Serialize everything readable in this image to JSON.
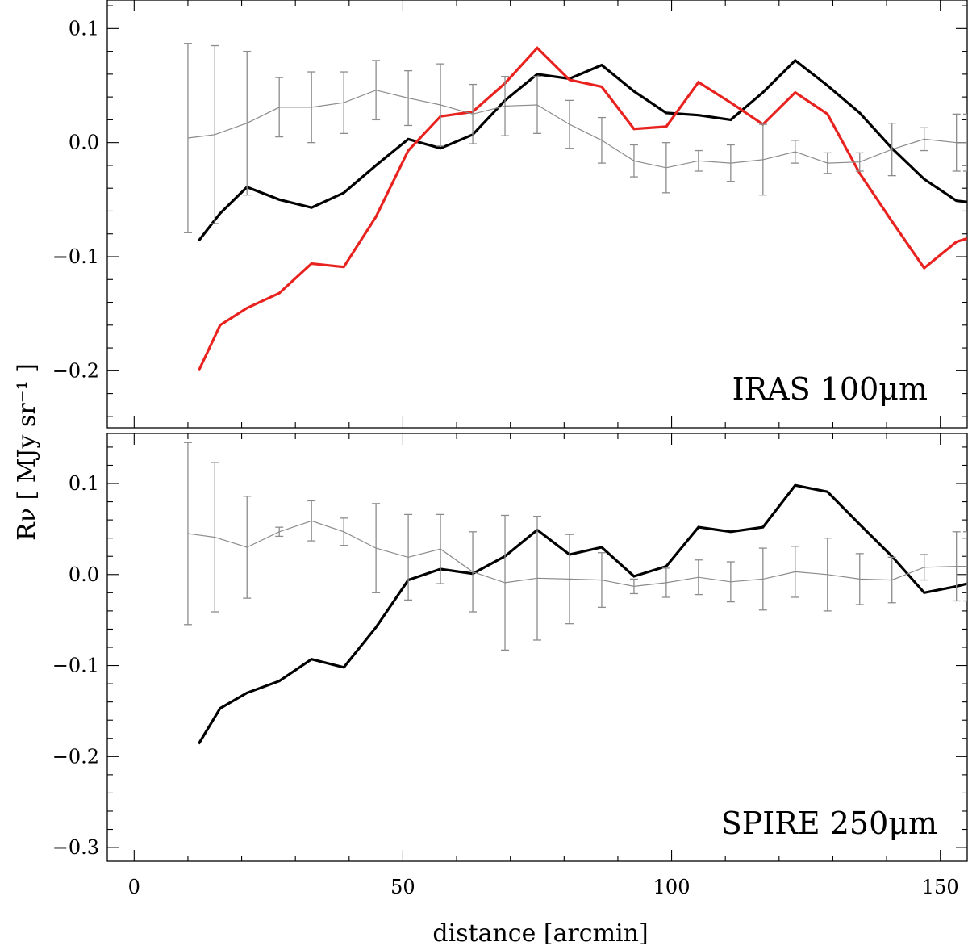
{
  "chart_data": [
    {
      "type": "line",
      "panel": "top",
      "panel_label": "IRAS 100μm",
      "xlabel": "distance [arcmin]",
      "ylabel": "Rν [ MJy sr⁻¹ ]",
      "xlim": [
        -5,
        155
      ],
      "ylim": [
        -0.25,
        0.125
      ],
      "yticks": [
        -0.2,
        -0.1,
        0.0,
        0.1
      ],
      "ytick_labels": [
        "−0.2",
        "−0.1",
        "0.0",
        "0.1"
      ],
      "series": [
        {
          "name": "black",
          "color": "#000000",
          "x": [
            12,
            16,
            21,
            27,
            33,
            39,
            45,
            51,
            57,
            63,
            69,
            75,
            81,
            87,
            93,
            99,
            105,
            111,
            117,
            123,
            129,
            135,
            141,
            147,
            153,
            155
          ],
          "y": [
            -0.086,
            -0.062,
            -0.039,
            -0.05,
            -0.057,
            -0.044,
            -0.02,
            0.003,
            -0.005,
            0.007,
            0.037,
            0.06,
            0.056,
            0.068,
            0.045,
            0.026,
            0.024,
            0.02,
            0.044,
            0.072,
            0.05,
            0.026,
            -0.005,
            -0.032,
            -0.051,
            -0.052
          ]
        },
        {
          "name": "red",
          "color": "#e8231f",
          "x": [
            12,
            16,
            21,
            27,
            33,
            39,
            45,
            51,
            57,
            63,
            69,
            75,
            81,
            87,
            93,
            99,
            105,
            111,
            117,
            123,
            129,
            135,
            141,
            147,
            153,
            155
          ],
          "y": [
            -0.2,
            -0.16,
            -0.145,
            -0.132,
            -0.106,
            -0.109,
            -0.065,
            -0.007,
            0.023,
            0.027,
            0.052,
            0.083,
            0.055,
            0.049,
            0.012,
            0.014,
            0.053,
            0.035,
            0.016,
            0.044,
            0.025,
            -0.027,
            -0.069,
            -0.11,
            -0.087,
            -0.084
          ]
        },
        {
          "name": "grey",
          "color": "#8c8c8c",
          "x": [
            10,
            15,
            21,
            27,
            33,
            39,
            45,
            51,
            57,
            63,
            69,
            75,
            81,
            87,
            93,
            99,
            105,
            111,
            117,
            123,
            129,
            135,
            141,
            147,
            153,
            155
          ],
          "y": [
            0.004,
            0.007,
            0.017,
            0.031,
            0.031,
            0.035,
            0.046,
            0.039,
            0.033,
            0.025,
            0.032,
            0.033,
            0.016,
            0.002,
            -0.016,
            -0.022,
            -0.016,
            -0.018,
            -0.015,
            -0.008,
            -0.018,
            -0.017,
            -0.006,
            0.003,
            0.0,
            0.0
          ],
          "err": [
            0.083,
            0.078,
            0.063,
            0.026,
            0.031,
            0.027,
            0.026,
            0.024,
            0.036,
            0.026,
            0.026,
            0.025,
            0.021,
            0.02,
            0.014,
            0.022,
            0.009,
            0.016,
            0.031,
            0.01,
            0.009,
            0.008,
            0.023,
            0.01,
            0.025,
            0.025
          ]
        }
      ]
    },
    {
      "type": "line",
      "panel": "bottom",
      "panel_label": "SPIRE 250μm",
      "xlabel": "distance [arcmin]",
      "ylabel": "Rν [ MJy sr⁻¹ ]",
      "xlim": [
        -5,
        155
      ],
      "ylim": [
        -0.315,
        0.155
      ],
      "xticks": [
        0,
        50,
        100,
        150
      ],
      "xtick_labels": [
        "0",
        "50",
        "100",
        "150"
      ],
      "yticks": [
        -0.3,
        -0.2,
        -0.1,
        0.0,
        0.1
      ],
      "ytick_labels": [
        "−0.3",
        "−0.2",
        "−0.1",
        "0.0",
        "0.1"
      ],
      "series": [
        {
          "name": "black",
          "color": "#000000",
          "x": [
            12,
            16,
            21,
            27,
            33,
            39,
            45,
            51,
            57,
            63,
            69,
            75,
            81,
            87,
            93,
            99,
            105,
            111,
            117,
            123,
            129,
            135,
            141,
            147,
            153,
            155
          ],
          "y": [
            -0.186,
            -0.147,
            -0.13,
            -0.117,
            -0.093,
            -0.102,
            -0.058,
            -0.006,
            0.006,
            0.001,
            0.02,
            0.049,
            0.022,
            0.03,
            -0.002,
            0.009,
            0.052,
            0.047,
            0.052,
            0.098,
            0.091,
            0.055,
            0.02,
            -0.02,
            -0.013,
            -0.01
          ]
        },
        {
          "name": "grey",
          "color": "#8c8c8c",
          "x": [
            10,
            15,
            21,
            27,
            33,
            39,
            45,
            51,
            57,
            63,
            69,
            75,
            81,
            87,
            93,
            99,
            105,
            111,
            117,
            123,
            129,
            135,
            141,
            147,
            153,
            155
          ],
          "y": [
            0.045,
            0.041,
            0.03,
            0.047,
            0.059,
            0.047,
            0.029,
            0.019,
            0.028,
            0.003,
            -0.009,
            -0.004,
            -0.005,
            -0.006,
            -0.013,
            -0.009,
            -0.003,
            -0.008,
            -0.005,
            0.003,
            0.0,
            -0.005,
            -0.006,
            0.008,
            0.009,
            0.009
          ],
          "err": [
            0.1,
            0.082,
            0.056,
            0.005,
            0.022,
            0.015,
            0.049,
            0.047,
            0.038,
            0.044,
            0.074,
            0.068,
            0.049,
            0.03,
            0.008,
            0.016,
            0.019,
            0.022,
            0.034,
            0.028,
            0.04,
            0.028,
            0.025,
            0.014,
            0.038,
            0.038
          ]
        }
      ]
    }
  ]
}
